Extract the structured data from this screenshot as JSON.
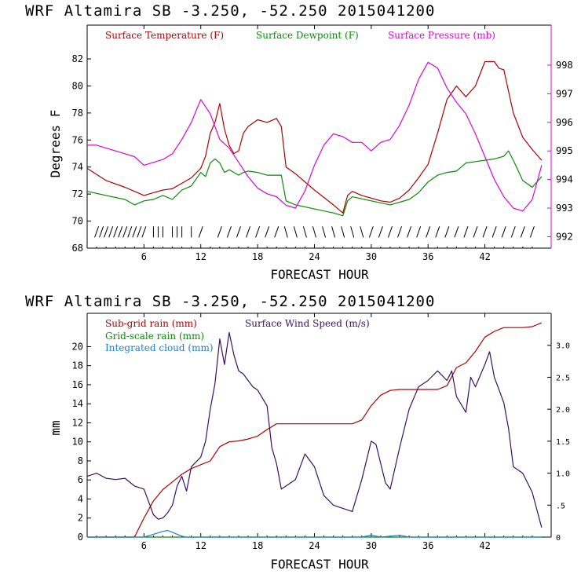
{
  "chart_data": [
    {
      "type": "line",
      "title": "WRF   Altamira  SB  -3.250, -52.250  2015041200",
      "xlabel": "FORECAST HOUR",
      "ylabel": "Degrees F",
      "y2label": "",
      "xlim": [
        0,
        49
      ],
      "ylim": [
        68,
        84.5
      ],
      "y2lim": [
        991.6,
        999.4
      ],
      "x_ticks": [
        6,
        12,
        18,
        24,
        30,
        36,
        42
      ],
      "y_ticks": [
        68,
        70,
        72,
        74,
        76,
        78,
        80,
        82
      ],
      "y2_ticks": [
        992,
        993,
        994,
        995,
        996,
        997,
        998
      ],
      "grid": false,
      "legend": "top-left, inline",
      "series": [
        {
          "name": "Surface Temperature (F)",
          "axis": "left",
          "color": "#b00000",
          "x": [
            0,
            2,
            4,
            5,
            6,
            7,
            8,
            9,
            10,
            11,
            12,
            12.5,
            13,
            13.5,
            14,
            14.5,
            15,
            15.5,
            16,
            16.5,
            17,
            18,
            19,
            20,
            20.5,
            21,
            22,
            24,
            26,
            27,
            27.5,
            28,
            29,
            30,
            31,
            32,
            33,
            34,
            35,
            36,
            37,
            38,
            39,
            40,
            41,
            42,
            43,
            43.5,
            44,
            45,
            46,
            47,
            48
          ],
          "y": [
            73.9,
            73.0,
            72.5,
            72.2,
            71.9,
            72.1,
            72.3,
            72.4,
            72.8,
            73.2,
            73.9,
            74.8,
            76.5,
            77.3,
            78.7,
            76.8,
            75.6,
            75.0,
            75.2,
            76.5,
            77.0,
            77.5,
            77.3,
            77.6,
            77.0,
            74.0,
            73.5,
            72.3,
            71.2,
            70.6,
            71.9,
            72.2,
            71.9,
            71.7,
            71.5,
            71.4,
            71.7,
            72.3,
            73.2,
            74.2,
            76.5,
            79.0,
            80.0,
            79.2,
            80.0,
            81.8,
            81.8,
            81.3,
            81.2,
            78.0,
            76.2,
            75.3,
            74.5
          ]
        },
        {
          "name": "Surface Dewpoint (F)",
          "axis": "left",
          "color": "#0a8a0a",
          "x": [
            0,
            2,
            4,
            5,
            6,
            7,
            8,
            9,
            10,
            11,
            12,
            12.5,
            13,
            13.5,
            14,
            14.5,
            15,
            15.5,
            16,
            16.5,
            17,
            18,
            19,
            20,
            20.5,
            21,
            22,
            24,
            26,
            27,
            27.5,
            28,
            30,
            32,
            33,
            34,
            35,
            36,
            37,
            38,
            39,
            40,
            41,
            42,
            43,
            44,
            44.5,
            45,
            46,
            47,
            48
          ],
          "y": [
            72.2,
            71.9,
            71.6,
            71.2,
            71.5,
            71.6,
            71.9,
            71.6,
            72.3,
            72.6,
            73.6,
            73.3,
            74.3,
            74.6,
            74.3,
            73.6,
            73.8,
            73.6,
            73.4,
            73.6,
            73.7,
            73.6,
            73.4,
            73.4,
            73.4,
            71.5,
            71.2,
            70.9,
            70.6,
            70.4,
            71.5,
            71.8,
            71.5,
            71.2,
            71.4,
            71.6,
            72.1,
            72.9,
            73.4,
            73.6,
            73.7,
            74.3,
            74.4,
            74.5,
            74.6,
            74.8,
            75.2,
            74.5,
            73.0,
            72.5,
            73.3
          ]
        },
        {
          "name": "Surface Pressure (mb)",
          "axis": "right",
          "color": "#e000e0",
          "x": [
            0,
            1,
            2,
            3,
            4,
            5,
            6,
            7,
            8,
            9,
            10,
            11,
            12,
            13,
            14,
            15,
            16,
            17,
            18,
            19,
            20,
            21,
            22,
            23,
            24,
            25,
            26,
            27,
            28,
            29,
            30,
            31,
            32,
            33,
            34,
            35,
            36,
            37,
            38,
            39,
            40,
            41,
            42,
            43,
            44,
            45,
            46,
            47,
            48
          ],
          "y": [
            995.2,
            995.2,
            995.1,
            995.0,
            994.9,
            994.8,
            994.5,
            994.6,
            994.7,
            994.9,
            995.4,
            996.0,
            996.8,
            996.3,
            995.4,
            995.1,
            994.6,
            994.1,
            993.7,
            993.5,
            993.4,
            993.1,
            993.0,
            993.6,
            994.5,
            995.2,
            995.6,
            995.5,
            995.3,
            995.3,
            995.0,
            995.3,
            995.4,
            995.9,
            996.6,
            997.5,
            998.1,
            997.9,
            997.2,
            996.7,
            996.3,
            995.6,
            994.8,
            994.0,
            993.4,
            993.0,
            992.9,
            993.3,
            994.5
          ]
        }
      ],
      "wind_barbs": {
        "y": 69.2,
        "x": [
          1,
          1.5,
          2,
          2.5,
          3,
          3.5,
          4,
          4.5,
          5,
          5.5,
          6,
          7,
          7.5,
          8,
          9,
          9.5,
          10,
          11,
          12,
          14,
          15,
          16,
          17,
          18,
          19,
          20,
          21,
          22,
          23,
          24,
          25,
          26,
          27,
          28,
          29,
          30,
          31,
          32,
          33,
          34,
          35,
          36,
          37,
          38,
          39,
          40,
          41,
          42,
          43,
          44,
          45,
          46,
          47
        ]
      }
    },
    {
      "type": "line",
      "title": "WRF   Altamira  SB  -3.250, -52.250  2015041200",
      "xlabel": "FORECAST HOUR",
      "ylabel": "mm",
      "y2label": "",
      "xlim": [
        0,
        49
      ],
      "ylim": [
        0,
        23.5
      ],
      "y2lim": [
        0,
        3.5
      ],
      "x_ticks": [
        6,
        12,
        18,
        24,
        30,
        36,
        42
      ],
      "y_ticks": [
        0,
        2,
        4,
        6,
        8,
        10,
        12,
        14,
        16,
        18,
        20
      ],
      "y2_ticks": [
        0,
        0.5,
        1.0,
        1.5,
        2.0,
        2.5,
        3.0
      ],
      "y2_tick_labels": [
        "0",
        ".5",
        "1.0",
        "1.5",
        "2.0",
        "2.5",
        "3.0"
      ],
      "grid": false,
      "legend": "top-left, stacked",
      "series": [
        {
          "name": "Sub-grid rain (mm)",
          "axis": "left",
          "color": "#b00000",
          "x": [
            0,
            5,
            6,
            7,
            8,
            9,
            10,
            11,
            12,
            13,
            14,
            15,
            16,
            17,
            18,
            19,
            20,
            21,
            22,
            24,
            26,
            28,
            29,
            30,
            31,
            32,
            33,
            34,
            35,
            36,
            37,
            38,
            39,
            40,
            41,
            42,
            43,
            44,
            45,
            46,
            47,
            48
          ],
          "y": [
            0,
            0,
            2.0,
            3.8,
            5.0,
            5.8,
            6.6,
            7.2,
            7.6,
            8.0,
            9.5,
            10.0,
            10.1,
            10.3,
            10.6,
            11.3,
            11.9,
            11.9,
            11.9,
            11.9,
            11.9,
            11.9,
            12.3,
            13.8,
            14.9,
            15.4,
            15.5,
            15.5,
            15.5,
            15.5,
            15.5,
            15.9,
            17.8,
            18.3,
            19.5,
            21.0,
            21.6,
            22.0,
            22.0,
            22.0,
            22.1,
            22.5
          ]
        },
        {
          "name": "Grid-scale rain (mm)",
          "axis": "left",
          "color": "#0a8a0a",
          "x": [
            0,
            48
          ],
          "y": [
            0,
            0
          ]
        },
        {
          "name": "Integrated cloud (mm)",
          "axis": "left",
          "color": "#1e7fd0",
          "x": [
            0,
            6,
            7,
            8,
            8.5,
            9,
            10,
            10.5,
            28,
            29,
            30,
            31,
            32,
            33,
            33.5,
            34,
            48
          ],
          "y": [
            0,
            0,
            0.3,
            0.6,
            0.7,
            0.5,
            0.1,
            0,
            0,
            0,
            0.2,
            0,
            0.1,
            0.2,
            0.1,
            0,
            0
          ]
        },
        {
          "name": "Surface Wind Speed (m/s)",
          "axis": "right",
          "color": "#3a1060",
          "x": [
            0,
            1,
            2,
            3,
            4,
            5,
            6,
            6.5,
            7,
            7.5,
            8,
            8.5,
            9,
            9.5,
            10,
            10.5,
            11,
            12,
            12.5,
            13,
            13.5,
            14,
            14.5,
            15,
            15.5,
            16,
            16.5,
            17,
            17.5,
            18,
            19,
            19.5,
            20,
            20.5,
            21,
            22,
            23,
            24,
            25,
            26,
            27,
            28,
            29,
            30,
            30.5,
            31,
            31.5,
            32,
            33,
            34,
            35,
            36,
            37,
            38,
            38.5,
            39,
            40,
            40.5,
            41,
            42,
            42.5,
            43,
            43.5,
            44,
            44.5,
            45,
            46,
            47,
            48
          ],
          "y": [
            0.95,
            1.0,
            0.92,
            0.9,
            0.92,
            0.8,
            0.75,
            0.55,
            0.35,
            0.28,
            0.3,
            0.38,
            0.5,
            0.8,
            0.95,
            0.72,
            1.1,
            1.25,
            1.5,
            2.0,
            2.4,
            3.1,
            2.7,
            3.2,
            2.85,
            2.6,
            2.55,
            2.45,
            2.35,
            2.3,
            2.05,
            1.4,
            1.15,
            0.75,
            0.8,
            0.9,
            1.3,
            1.1,
            0.65,
            0.5,
            0.45,
            0.4,
            0.9,
            1.5,
            1.45,
            1.15,
            0.85,
            0.75,
            1.4,
            2.0,
            2.35,
            2.45,
            2.6,
            2.45,
            2.6,
            2.2,
            1.95,
            2.5,
            2.35,
            2.7,
            2.9,
            2.5,
            2.3,
            2.1,
            1.7,
            1.1,
            1.0,
            0.7,
            0.15
          ]
        }
      ]
    }
  ]
}
